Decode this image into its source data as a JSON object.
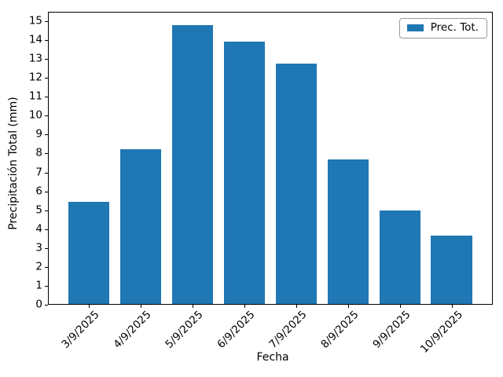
{
  "chart_data": {
    "type": "bar",
    "title": "",
    "xlabel": "Fecha",
    "ylabel": "Precipitación Total (mm)",
    "categories": [
      "3/9/2025",
      "4/9/2025",
      "5/9/2025",
      "6/9/2025",
      "7/9/2025",
      "8/9/2025",
      "9/9/2025",
      "10/9/2025"
    ],
    "series": [
      {
        "name": "Prec. Tot.",
        "values": [
          5.4,
          8.2,
          14.75,
          13.9,
          12.7,
          7.65,
          4.95,
          3.6
        ]
      }
    ],
    "ylim": [
      0,
      15.5
    ],
    "yticks": [
      0,
      1,
      2,
      3,
      4,
      5,
      6,
      7,
      8,
      9,
      10,
      11,
      12,
      13,
      14,
      15
    ],
    "xtick_rotation": 45,
    "grid": false,
    "legend": {
      "position": "upper right",
      "entries": [
        "Prec. Tot."
      ]
    },
    "bar_color": "#1f77b4"
  },
  "colors": {
    "bar": "#1f77b4",
    "axes": "#000000",
    "text": "#000000",
    "legend_border": "#999999",
    "background": "#ffffff"
  }
}
